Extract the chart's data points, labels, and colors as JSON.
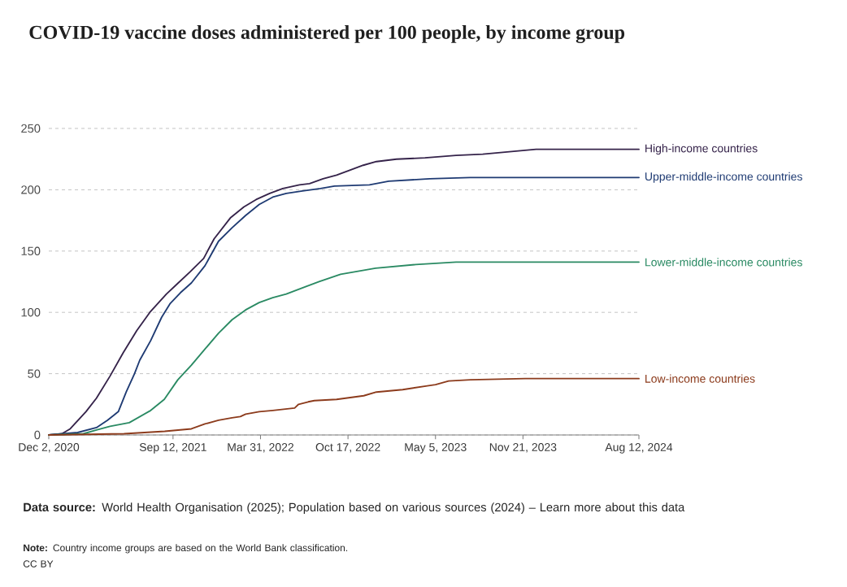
{
  "chart_data": {
    "type": "line",
    "title": "COVID-19 vaccine doses administered per 100 people, by income group",
    "xlim": [
      "2020-12-02",
      "2024-08-12"
    ],
    "xticks": [
      {
        "value": "2020-12-02",
        "label": "Dec 2, 2020"
      },
      {
        "value": "2021-09-12",
        "label": "Sep 12, 2021"
      },
      {
        "value": "2022-03-31",
        "label": "Mar 31, 2022"
      },
      {
        "value": "2022-10-17",
        "label": "Oct 17, 2022"
      },
      {
        "value": "2023-05-05",
        "label": "May 5, 2023"
      },
      {
        "value": "2023-11-21",
        "label": "Nov 21, 2023"
      },
      {
        "value": "2024-08-12",
        "label": "Aug 12, 2024"
      }
    ],
    "ylim": [
      0,
      250
    ],
    "yticks": [
      0,
      50,
      100,
      150,
      200,
      250
    ],
    "grid": "y",
    "series": [
      {
        "name": "High-income countries",
        "color": "#35234a",
        "x": [
          "2020-12-02",
          "2021-01-01",
          "2021-01-20",
          "2021-02-25",
          "2021-03-21",
          "2021-04-21",
          "2021-05-21",
          "2021-06-21",
          "2021-07-21",
          "2021-08-28",
          "2021-09-21",
          "2021-10-21",
          "2021-11-21",
          "2021-12-15",
          "2022-01-21",
          "2022-02-21",
          "2022-03-21",
          "2022-04-21",
          "2022-05-21",
          "2022-06-28",
          "2022-07-21",
          "2022-08-21",
          "2022-09-21",
          "2022-10-21",
          "2022-11-21",
          "2022-12-21",
          "2023-02-05",
          "2023-04-11",
          "2023-06-21",
          "2023-08-21",
          "2023-10-21",
          "2023-12-21",
          "2024-08-12"
        ],
        "values": [
          0,
          1,
          5,
          19,
          30,
          48,
          67,
          85,
          100,
          115,
          123,
          133,
          144,
          160,
          177,
          186,
          192,
          197,
          201,
          204,
          205,
          209,
          212,
          216,
          220,
          223,
          225,
          226,
          228,
          229,
          231,
          233,
          233
        ]
      },
      {
        "name": "Upper-middle-income countries",
        "color": "#1f3b73",
        "x": [
          "2020-12-02",
          "2021-02-06",
          "2021-03-21",
          "2021-04-15",
          "2021-05-10",
          "2021-05-28",
          "2021-06-16",
          "2021-06-28",
          "2021-07-23",
          "2021-08-17",
          "2021-09-05",
          "2021-09-29",
          "2021-10-24",
          "2021-11-24",
          "2021-12-25",
          "2022-01-25",
          "2022-02-25",
          "2022-03-28",
          "2022-04-28",
          "2022-05-29",
          "2022-07-05",
          "2022-08-15",
          "2022-09-16",
          "2022-12-05",
          "2023-01-18",
          "2023-04-22",
          "2023-07-23",
          "2023-11-26",
          "2024-08-12"
        ],
        "values": [
          0,
          2,
          6,
          12,
          19,
          35,
          50,
          61,
          77,
          96,
          107,
          116,
          124,
          138,
          158,
          169,
          179,
          188,
          194,
          197,
          199,
          201,
          203,
          204,
          207,
          209,
          210,
          210,
          210
        ]
      },
      {
        "name": "Lower-middle-income countries",
        "color": "#2a8a63",
        "x": [
          "2020-12-02",
          "2021-02-19",
          "2021-03-21",
          "2021-04-21",
          "2021-06-04",
          "2021-07-23",
          "2021-08-23",
          "2021-09-23",
          "2021-10-24",
          "2021-11-24",
          "2021-12-25",
          "2022-01-25",
          "2022-02-25",
          "2022-03-28",
          "2022-04-28",
          "2022-05-29",
          "2022-07-12",
          "2022-08-12",
          "2022-09-30",
          "2022-12-19",
          "2023-03-21",
          "2023-06-21",
          "2024-08-12"
        ],
        "values": [
          0,
          1,
          4,
          7,
          10,
          20,
          29,
          45,
          57,
          70,
          83,
          94,
          102,
          108,
          112,
          115,
          121,
          125,
          131,
          136,
          139,
          141,
          141
        ]
      },
      {
        "name": "Low-income countries",
        "color": "#8c3b1c",
        "x": [
          "2020-12-02",
          "2021-05-23",
          "2021-08-24",
          "2021-10-24",
          "2021-11-24",
          "2021-12-25",
          "2022-01-25",
          "2022-02-13",
          "2022-02-25",
          "2022-03-28",
          "2022-04-28",
          "2022-06-17",
          "2022-06-26",
          "2022-07-18",
          "2022-08-01",
          "2022-09-21",
          "2022-11-22",
          "2022-12-21",
          "2023-02-19",
          "2023-04-16",
          "2023-05-05",
          "2023-06-04",
          "2023-07-24",
          "2023-11-26",
          "2024-08-12"
        ],
        "values": [
          0,
          1,
          3,
          5,
          9,
          12,
          14,
          15,
          17,
          19,
          20,
          22,
          25,
          27,
          28,
          29,
          32,
          35,
          37,
          40,
          41,
          44,
          45,
          46,
          46
        ]
      }
    ],
    "annotations": [
      "**Data source:** World Health Organisation (2025); Population based on various sources (2024) – Learn more about this data",
      "**Note:** Country income groups are based on the World Bank classification.",
      "CC BY"
    ]
  }
}
